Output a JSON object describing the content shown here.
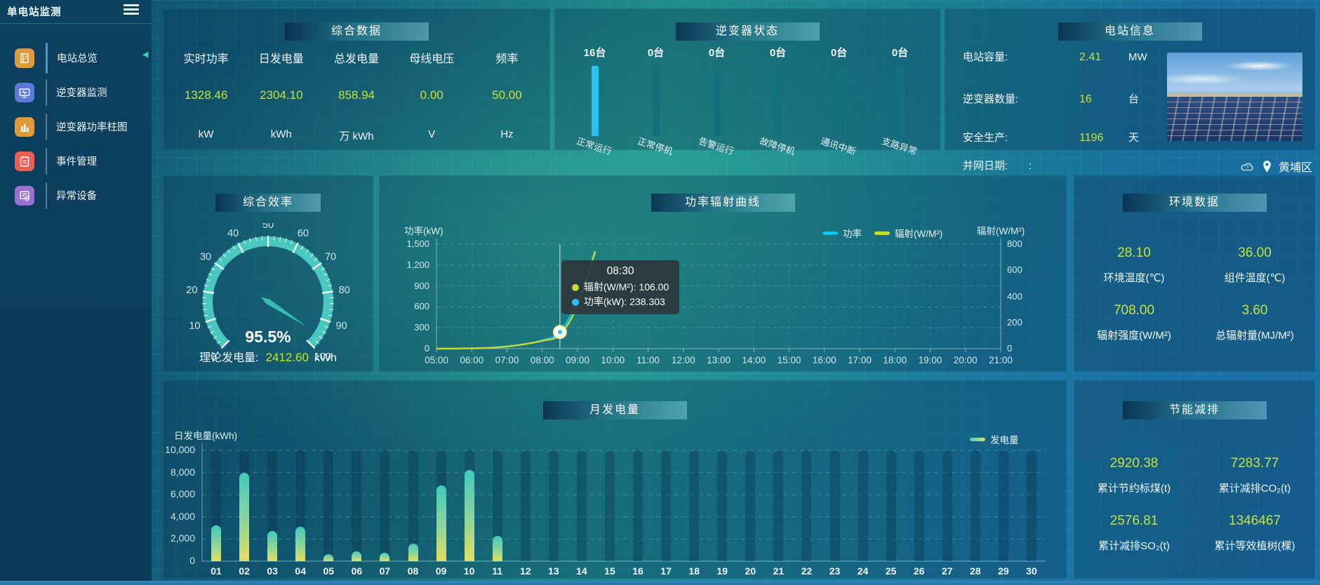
{
  "app": {
    "title": "单电站监测"
  },
  "sidebar": {
    "items": [
      {
        "label": "电站总览",
        "icon": "overview-icon",
        "color": "#e09a3c",
        "active": true
      },
      {
        "label": "逆变器监测",
        "icon": "inverter-monitor-icon",
        "color": "#5b79d8",
        "active": false
      },
      {
        "label": "逆变器功率柱图",
        "icon": "power-bar-icon",
        "color": "#e09a3c",
        "active": false
      },
      {
        "label": "事件管理",
        "icon": "event-icon",
        "color": "#ed5f55",
        "active": false
      },
      {
        "label": "异常设备",
        "icon": "abnormal-device-icon",
        "color": "#9a6fd4",
        "active": false
      }
    ]
  },
  "summary": {
    "title": "综合数据",
    "metrics": [
      {
        "label": "实时功率",
        "value": "1328.46",
        "unit": "kW"
      },
      {
        "label": "日发电量",
        "value": "2304.10",
        "unit": "kWh"
      },
      {
        "label": "总发电量",
        "value": "858.94",
        "unit": "万 kWh"
      },
      {
        "label": "母线电压",
        "value": "0.00",
        "unit": "V"
      },
      {
        "label": "频率",
        "value": "50.00",
        "unit": "Hz"
      }
    ]
  },
  "station_info": {
    "title": "电站信息",
    "rows": [
      {
        "label": "电站容量:",
        "value": "2.41",
        "unit": "MW"
      },
      {
        "label": "逆变器数量:",
        "value": "16",
        "unit": "台"
      },
      {
        "label": "安全生产:",
        "value": "1196",
        "unit": "天"
      }
    ],
    "grid_date_label": "并网日期:",
    "grid_date_value": ":",
    "location": "黄埔区"
  },
  "efficiency": {
    "footer_label": "理论发电量:",
    "footer_value": "2412.60",
    "footer_unit": "kWh"
  },
  "environment": {
    "title": "环境数据",
    "metrics": [
      {
        "value": "28.10",
        "label": "环境温度(℃)"
      },
      {
        "value": "36.00",
        "label": "组件温度(℃)"
      },
      {
        "value": "708.00",
        "label": "辐射强度(W/M²)"
      },
      {
        "value": "3.60",
        "label": "总辐射量(MJ/M²)"
      }
    ]
  },
  "savings": {
    "title": "节能减排",
    "metrics": [
      {
        "value": "2920.38",
        "label": "累计节约标煤(t)"
      },
      {
        "value": "7283.77",
        "label": "累计减排CO₂(t)"
      },
      {
        "value": "2576.81",
        "label": "累计减排SO₂(t)"
      },
      {
        "value": "1346467",
        "label": "累计等效植树(棵)"
      }
    ]
  },
  "chart_data": [
    {
      "id": "inverter_status",
      "type": "bar",
      "title": "逆变器状态",
      "categories": [
        "正常运行",
        "正常停机",
        "告警运行",
        "故障停机",
        "通讯中断",
        "支路异常"
      ],
      "values": [
        16,
        0,
        0,
        0,
        0,
        0
      ],
      "value_labels": [
        "16台",
        "0台",
        "0台",
        "0台",
        "0台",
        "0台"
      ],
      "highlight_color": "#2ac2f0",
      "bar_color": "#11707c"
    },
    {
      "id": "efficiency_gauge",
      "type": "gauge",
      "title": "综合效率",
      "value": 95.5,
      "value_label": "95.5%",
      "min": 0,
      "max": 100,
      "tick_interval": 10,
      "arc_color": "#4ecdc2",
      "needle_color": "#35bdb0"
    },
    {
      "id": "power_radiation",
      "type": "line",
      "title": "功率辐射曲线",
      "x_ticks": [
        "05:00",
        "06:00",
        "07:00",
        "08:00",
        "09:00",
        "10:00",
        "11:00",
        "12:00",
        "13:00",
        "14:00",
        "15:00",
        "16:00",
        "17:00",
        "18:00",
        "19:00",
        "20:00",
        "21:00"
      ],
      "x_range": [
        5,
        21
      ],
      "y_left": {
        "name": "功率(kW)",
        "max": 1500,
        "ticks": [
          "0",
          "300",
          "600",
          "900",
          "1,200",
          "1,500"
        ]
      },
      "y_right": {
        "name": "辐射(W/M²)",
        "max": 800,
        "ticks": [
          "0",
          "200",
          "400",
          "600",
          "800"
        ]
      },
      "legend": [
        {
          "name": "功率",
          "color": "#00c8f5"
        },
        {
          "name": "辐射(W/M²)",
          "color": "#c9d838"
        }
      ],
      "series": [
        {
          "name": "功率",
          "axis": "left",
          "color": "#00c8f5",
          "x": [
            5,
            5.5,
            6,
            6.5,
            7,
            7.5,
            8,
            8.5,
            9,
            9.5
          ],
          "y": [
            0,
            1,
            4,
            12,
            32,
            65,
            120,
            238.303,
            690,
            1390
          ]
        },
        {
          "name": "辐射(W/M²)",
          "axis": "right",
          "color": "#c9d838",
          "x": [
            5,
            5.5,
            6,
            6.5,
            7,
            7.5,
            8,
            8.5,
            9,
            9.5
          ],
          "y": [
            0,
            0,
            2,
            6,
            16,
            34,
            60,
            106,
            330,
            745
          ]
        }
      ],
      "tooltip": {
        "x": 8.5,
        "marker_value": 238.303,
        "title": "08:30",
        "rows": [
          {
            "color": "#c9d838",
            "text": "辐射(W/M²): 106.00"
          },
          {
            "color": "#2ac2f1",
            "text": "功率(kW): 238.303"
          }
        ]
      }
    },
    {
      "id": "monthly_generation",
      "type": "bar",
      "title": "月发电量",
      "axis_name": "日发电量(kWh)",
      "legend": "发电量",
      "categories": [
        "01",
        "02",
        "03",
        "04",
        "05",
        "06",
        "07",
        "08",
        "09",
        "10",
        "11",
        "12",
        "13",
        "14",
        "15",
        "16",
        "17",
        "18",
        "19",
        "20",
        "21",
        "22",
        "23",
        "24",
        "25",
        "26",
        "27",
        "28",
        "29",
        "30"
      ],
      "values": [
        3230,
        7980,
        2720,
        3100,
        630,
        880,
        760,
        1580,
        6840,
        8230,
        2280,
        0,
        0,
        0,
        0,
        0,
        0,
        0,
        0,
        0,
        0,
        0,
        0,
        0,
        0,
        0,
        0,
        0,
        0,
        0
      ],
      "ymax": 10000,
      "y_ticks": [
        "0",
        "2,000",
        "4,000",
        "6,000",
        "8,000",
        "10,000"
      ]
    }
  ]
}
